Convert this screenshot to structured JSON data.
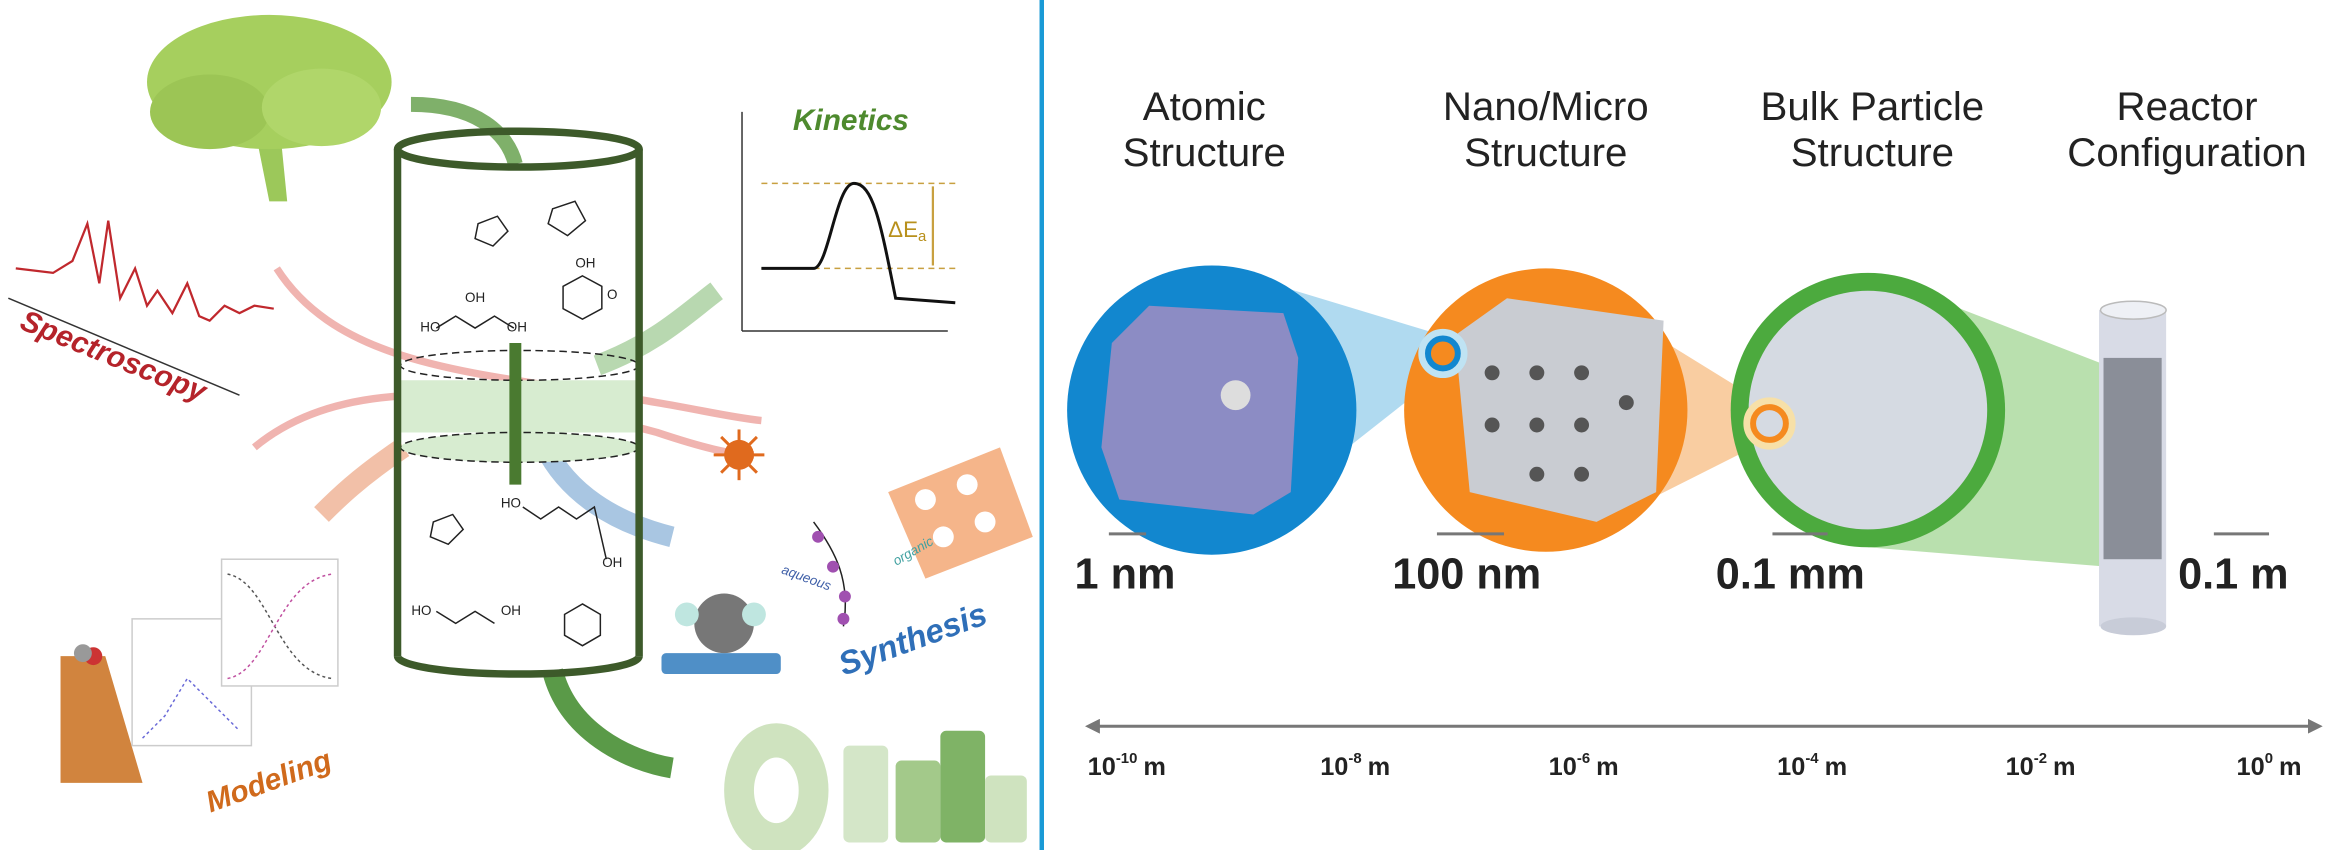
{
  "left_panel": {
    "kinetics": {
      "title": "Kinetics",
      "delta": "ΔE",
      "subscript": "a"
    },
    "labels": {
      "spectroscopy": "Spectroscopy",
      "modeling": "Modeling",
      "synthesis": "Synthesis",
      "aqueous": "aqueous",
      "organic": "organic"
    },
    "molecule_labels": [
      "OH",
      "O",
      "HO",
      "OH",
      "OH",
      "HO",
      "OH",
      "HO",
      "OH"
    ]
  },
  "right_panel": {
    "headers": [
      {
        "line1": "Atomic",
        "line2": "Structure"
      },
      {
        "line1": "Nano/Micro",
        "line2": "Structure"
      },
      {
        "line1": "Bulk Particle",
        "line2": "Structure"
      },
      {
        "line1": "Reactor",
        "line2": "Configuration"
      }
    ],
    "scale_labels": [
      "1 nm",
      "100 nm",
      "0.1 mm",
      "0.1 m"
    ],
    "axis_ticks": [
      {
        "base": "10",
        "exp": "-10",
        "unit": "m"
      },
      {
        "base": "10",
        "exp": "-8",
        "unit": "m"
      },
      {
        "base": "10",
        "exp": "-6",
        "unit": "m"
      },
      {
        "base": "10",
        "exp": "-4",
        "unit": "m"
      },
      {
        "base": "10",
        "exp": "-2",
        "unit": "m"
      },
      {
        "base": "10",
        "exp": "0",
        "unit": "m"
      }
    ]
  }
}
